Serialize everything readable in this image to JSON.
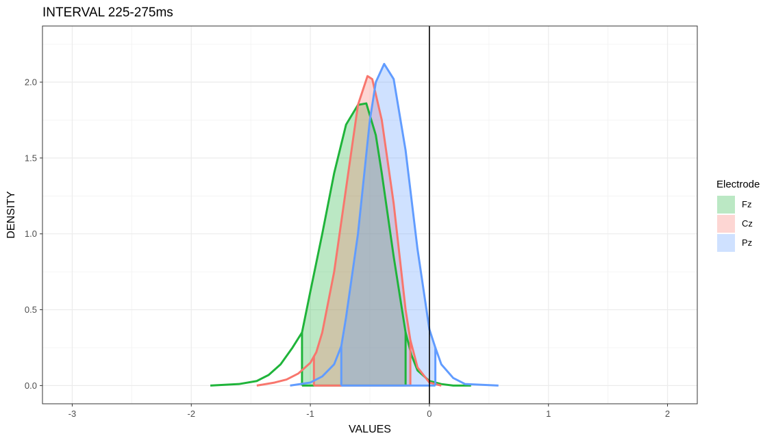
{
  "chart_data": {
    "type": "area",
    "title": "INTERVAL 225-275ms",
    "xlabel": "VALUES",
    "ylabel": "DENSITY",
    "xlim": [
      -3.25,
      2.25
    ],
    "ylim": [
      -0.12,
      2.37
    ],
    "x_ticks": [
      -3,
      -2,
      -1,
      0,
      1,
      2
    ],
    "y_ticks": [
      0.0,
      0.5,
      1.0,
      1.5,
      2.0
    ],
    "x_tick_labels": [
      "-3",
      "-2",
      "-1",
      "0",
      "1",
      "2"
    ],
    "y_tick_labels": [
      "0.0",
      "0.5",
      "1.0",
      "1.5",
      "2.0"
    ],
    "grid": true,
    "vline_x": 0,
    "legend": {
      "title": "Electrode",
      "position": "right"
    },
    "series": [
      {
        "name": "Fz",
        "color": "#1fb43a",
        "fill": "#1fb43a",
        "ci": [
          -1.07,
          -0.2
        ],
        "x": [
          -1.84,
          -1.6,
          -1.45,
          -1.35,
          -1.25,
          -1.15,
          -1.07,
          -1.0,
          -0.9,
          -0.8,
          -0.7,
          -0.6,
          -0.53,
          -0.45,
          -0.4,
          -0.3,
          -0.2,
          -0.15,
          -0.1,
          0.0,
          0.1,
          0.2,
          0.35
        ],
        "y": [
          0.0,
          0.01,
          0.03,
          0.07,
          0.14,
          0.25,
          0.35,
          0.62,
          1.0,
          1.4,
          1.72,
          1.85,
          1.86,
          1.65,
          1.4,
          0.85,
          0.35,
          0.2,
          0.1,
          0.03,
          0.01,
          0.0,
          0.0
        ]
      },
      {
        "name": "Cz",
        "color": "#f8766d",
        "fill": "#f8766d",
        "ci": [
          -0.97,
          -0.16
        ],
        "x": [
          -1.45,
          -1.3,
          -1.2,
          -1.1,
          -1.0,
          -0.95,
          -0.9,
          -0.8,
          -0.7,
          -0.6,
          -0.52,
          -0.48,
          -0.4,
          -0.3,
          -0.2,
          -0.16,
          -0.1,
          0.0,
          0.1
        ],
        "y": [
          0.0,
          0.02,
          0.04,
          0.08,
          0.15,
          0.22,
          0.35,
          0.75,
          1.3,
          1.85,
          2.04,
          2.02,
          1.75,
          1.2,
          0.5,
          0.3,
          0.12,
          0.02,
          0.0
        ]
      },
      {
        "name": "Pz",
        "color": "#619cff",
        "fill": "#619cff",
        "ci": [
          -0.74,
          0.05
        ],
        "x": [
          -1.17,
          -1.0,
          -0.9,
          -0.8,
          -0.74,
          -0.7,
          -0.6,
          -0.5,
          -0.45,
          -0.38,
          -0.3,
          -0.2,
          -0.1,
          0.0,
          0.05,
          0.1,
          0.2,
          0.3,
          0.58
        ],
        "y": [
          0.0,
          0.02,
          0.06,
          0.14,
          0.26,
          0.45,
          1.0,
          1.75,
          2.0,
          2.12,
          2.02,
          1.55,
          0.9,
          0.37,
          0.25,
          0.14,
          0.05,
          0.01,
          0.0
        ]
      }
    ]
  }
}
